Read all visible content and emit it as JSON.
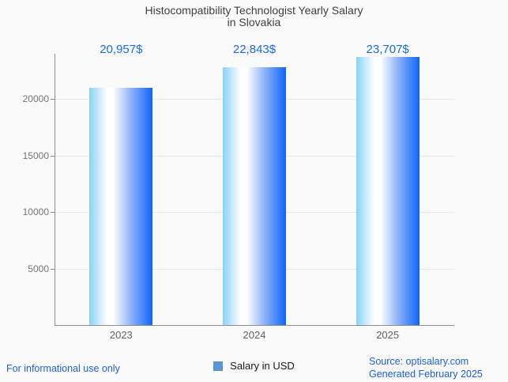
{
  "chart_data": {
    "type": "bar",
    "title": "Histocompatibility Technologist Yearly Salary in Slovakia",
    "title_lines": [
      "Histocompatibility Technologist Yearly Salary",
      "in Slovakia"
    ],
    "categories": [
      "2023",
      "2024",
      "2025"
    ],
    "series": [
      {
        "name": "Salary in USD",
        "values": [
          20957,
          22843,
          23707
        ]
      }
    ],
    "value_labels": [
      "20,957$",
      "22,843$",
      "23,707$"
    ],
    "ylabel": "",
    "xlabel": "",
    "yticks": [
      5000,
      10000,
      15000,
      20000
    ],
    "ytick_labels": [
      "5000",
      "10000",
      "15000",
      "20000"
    ],
    "ylim": [
      0,
      24000
    ],
    "grid": true,
    "legend_position": "bottom-center"
  },
  "legend": {
    "label": "Salary in USD",
    "marker_fill": "#5598e2",
    "marker_border": "#74889b"
  },
  "footer": {
    "disclaimer": "For informational use only",
    "source": "Source: optisalary.com",
    "generated": "Generated February 2025"
  },
  "colors": {
    "background": "#fafafa",
    "title": "#3f3f3f",
    "value_label": "#1a6ce8",
    "axis_label": "#757575",
    "xaxis_label": "#616161",
    "axis_line": "#8f8f8f",
    "gridline": "#e7e7e7",
    "footer_text": "#1b5fe0",
    "bar_gradient_left": "#86d3f9",
    "bar_gradient_mid": "#ffffff",
    "bar_gradient_right": "#0d66fa"
  }
}
